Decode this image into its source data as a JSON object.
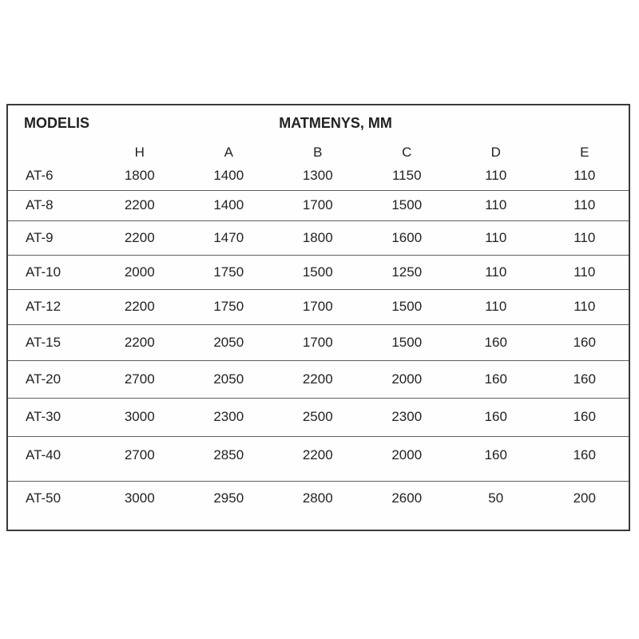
{
  "chart_data": {
    "type": "table",
    "title": "MATMENYS, MM",
    "row_header_label": "MODELIS",
    "columns": [
      "H",
      "A",
      "B",
      "C",
      "D",
      "E"
    ],
    "rows": [
      {
        "model": "AT-6",
        "values": [
          "1800",
          "1400",
          "1300",
          "1150",
          "110",
          "110"
        ]
      },
      {
        "model": "AT-8",
        "values": [
          "2200",
          "1400",
          "1700",
          "1500",
          "110",
          "110"
        ]
      },
      {
        "model": "AT-9",
        "values": [
          "2200",
          "1470",
          "1800",
          "1600",
          "110",
          "110"
        ]
      },
      {
        "model": "AT-10",
        "values": [
          "2000",
          "1750",
          "1500",
          "1250",
          "110",
          "110"
        ]
      },
      {
        "model": "AT-12",
        "values": [
          "2200",
          "1750",
          "1700",
          "1500",
          "110",
          "110"
        ]
      },
      {
        "model": "AT-15",
        "values": [
          "2200",
          "2050",
          "1700",
          "1500",
          "160",
          "160"
        ]
      },
      {
        "model": "AT-20",
        "values": [
          "2700",
          "2050",
          "2200",
          "2000",
          "160",
          "160"
        ]
      },
      {
        "model": "AT-30",
        "values": [
          "3000",
          "2300",
          "2500",
          "2300",
          "160",
          "160"
        ]
      },
      {
        "model": "AT-40",
        "values": [
          "2700",
          "2850",
          "2200",
          "2000",
          "160",
          "160"
        ]
      },
      {
        "model": "AT-50",
        "values": [
          "3000",
          "2950",
          "2800",
          "2600",
          "50",
          "200"
        ]
      }
    ],
    "layout": {
      "grid": "horizontal-row-separators-only",
      "legend": "none"
    }
  },
  "colors": {
    "background": "#ffffff",
    "text": "#222222",
    "border_outer": "#3a3a3a",
    "border_inner": "#5f5f5f"
  }
}
